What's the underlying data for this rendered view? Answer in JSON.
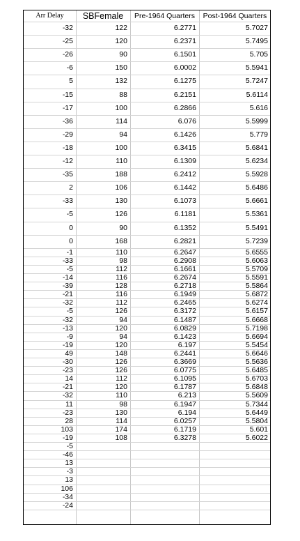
{
  "headers": [
    "Arr Delay",
    "SBFemale",
    "Pre-1964 Quarters",
    "Post-1964 Quarters"
  ],
  "rows": [
    [
      "-32",
      "122",
      "6.2771",
      "5.7027"
    ],
    [
      "-25",
      "120",
      "6.2371",
      "5.7495"
    ],
    [
      "-26",
      "90",
      "6.1501",
      "5.705"
    ],
    [
      "-6",
      "150",
      "6.0002",
      "5.5941"
    ],
    [
      "5",
      "132",
      "6.1275",
      "5.7247"
    ],
    [
      "-15",
      "88",
      "6.2151",
      "5.6114"
    ],
    [
      "-17",
      "100",
      "6.2866",
      "5.616"
    ],
    [
      "-36",
      "114",
      "6.076",
      "5.5999"
    ],
    [
      "-29",
      "94",
      "6.1426",
      "5.779"
    ],
    [
      "-18",
      "100",
      "6.3415",
      "5.6841"
    ],
    [
      "-12",
      "110",
      "6.1309",
      "5.6234"
    ],
    [
      "-35",
      "188",
      "6.2412",
      "5.5928"
    ],
    [
      "2",
      "106",
      "6.1442",
      "5.6486"
    ],
    [
      "-33",
      "130",
      "6.1073",
      "5.6661"
    ],
    [
      "-5",
      "126",
      "6.1181",
      "5.5361"
    ],
    [
      "0",
      "90",
      "6.1352",
      "5.5491"
    ],
    [
      "0",
      "168",
      "6.2821",
      "5.7239"
    ],
    [
      "-1",
      "110",
      "6.2647",
      "5.6555"
    ],
    [
      "-33",
      "98",
      "6.2908",
      "5.6063"
    ],
    [
      "-5",
      "112",
      "6.1661",
      "5.5709"
    ],
    [
      "-14",
      "116",
      "6.2674",
      "5.5591"
    ],
    [
      "-39",
      "128",
      "6.2718",
      "5.5864"
    ],
    [
      "-21",
      "116",
      "6.1949",
      "5.6872"
    ],
    [
      "-32",
      "112",
      "6.2465",
      "5.6274"
    ],
    [
      "-5",
      "126",
      "6.3172",
      "5.6157"
    ],
    [
      "-32",
      "94",
      "6.1487",
      "5.6668"
    ],
    [
      "-13",
      "120",
      "6.0829",
      "5.7198"
    ],
    [
      "-9",
      "94",
      "6.1423",
      "5.6694"
    ],
    [
      "-19",
      "120",
      "6.197",
      "5.5454"
    ],
    [
      "49",
      "148",
      "6.2441",
      "5.6646"
    ],
    [
      "-30",
      "126",
      "6.3669",
      "5.5636"
    ],
    [
      "-23",
      "126",
      "6.0775",
      "5.6485"
    ],
    [
      "14",
      "112",
      "6.1095",
      "5.6703"
    ],
    [
      "-21",
      "120",
      "6.1787",
      "5.6848"
    ],
    [
      "-32",
      "110",
      "6.213",
      "5.5609"
    ],
    [
      "11",
      "98",
      "6.1947",
      "5.7344"
    ],
    [
      "-23",
      "130",
      "6.194",
      "5.6449"
    ],
    [
      "28",
      "114",
      "6.0257",
      "5.5804"
    ],
    [
      "103",
      "174",
      "6.1719",
      "5.601"
    ],
    [
      "-19",
      "108",
      "6.3278",
      "5.6022"
    ],
    [
      "-5",
      "",
      "",
      ""
    ],
    [
      "-46",
      "",
      "",
      ""
    ],
    [
      "13",
      "",
      "",
      ""
    ],
    [
      "-3",
      "",
      "",
      ""
    ],
    [
      "13",
      "",
      "",
      ""
    ],
    [
      "106",
      "",
      "",
      ""
    ],
    [
      "-34",
      "",
      "",
      ""
    ],
    [
      "-24",
      "",
      "",
      ""
    ]
  ]
}
